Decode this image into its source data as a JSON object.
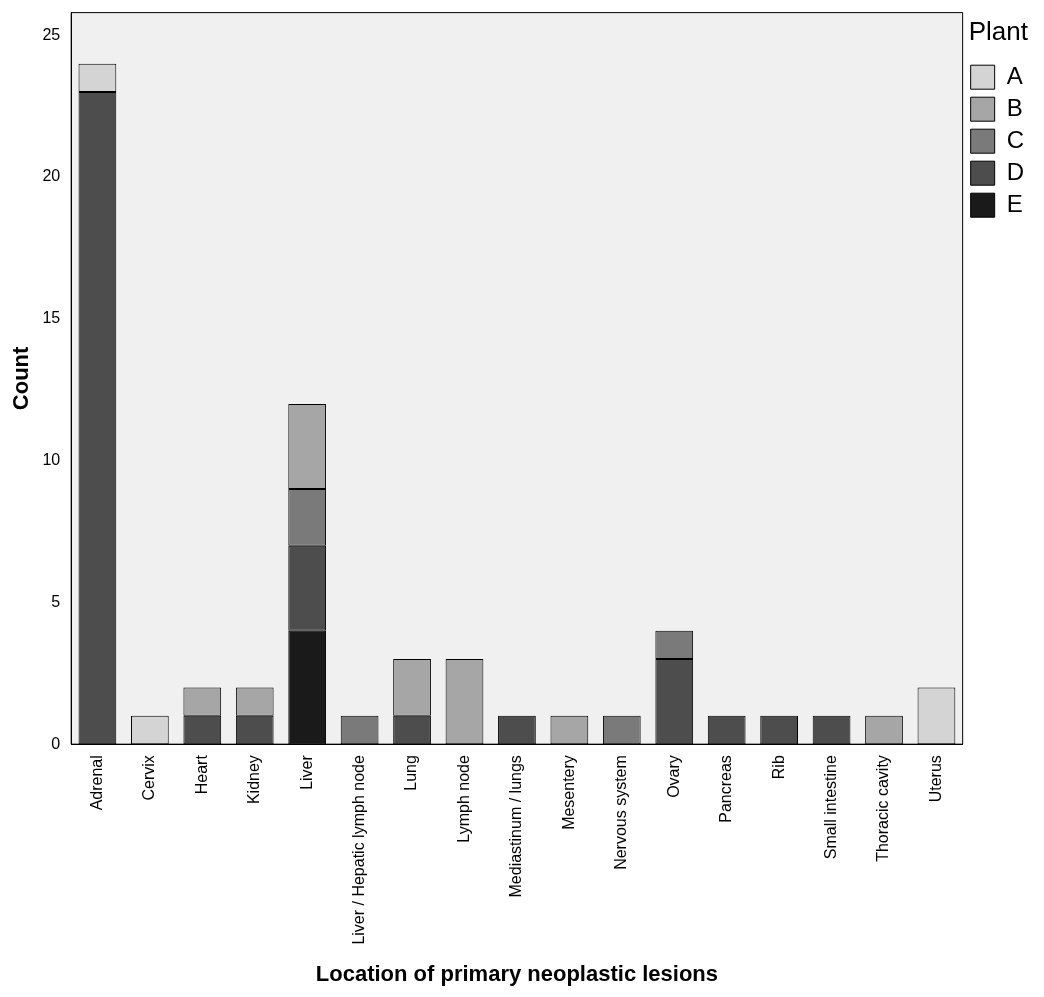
{
  "chart_data": {
    "type": "bar",
    "stacked": true,
    "xlabel": "Location of primary neoplastic lesions",
    "ylabel": "Count",
    "legend_title": "Plant",
    "legend": "top right",
    "grid": false,
    "categories": [
      "Adrenal",
      "Cervix",
      "Heart",
      "Kidney",
      "Liver",
      "Liver / Hepatic lymph node",
      "Lung",
      "Lymph node",
      "Mediastinum / lungs",
      "Mesentery",
      "Nervous system",
      "Ovary",
      "Pancreas",
      "Rib",
      "Small intestine",
      "Thoracic cavity",
      "Uterus"
    ],
    "ylim": [
      0,
      25.8
    ],
    "yticks": [
      0,
      5,
      10,
      15,
      20,
      25
    ],
    "series": [
      {
        "name": "E",
        "color": "#1a1a1a",
        "values": [
          0,
          0,
          0,
          0,
          4,
          0,
          0,
          0,
          0,
          0,
          0,
          0,
          0,
          0,
          0,
          0,
          0
        ]
      },
      {
        "name": "D",
        "color": "#4d4d4d",
        "values": [
          23,
          0,
          1,
          1,
          3,
          0,
          1,
          0,
          1,
          0,
          0,
          3,
          1,
          1,
          1,
          0,
          0
        ]
      },
      {
        "name": "C",
        "color": "#7a7a7a",
        "values": [
          0,
          0,
          0,
          0,
          2,
          1,
          0,
          0,
          0,
          0,
          1,
          1,
          0,
          0,
          0,
          0,
          0
        ]
      },
      {
        "name": "B",
        "color": "#a6a6a6",
        "values": [
          0,
          0,
          1,
          1,
          3,
          0,
          2,
          3,
          0,
          1,
          0,
          0,
          0,
          0,
          0,
          1,
          0
        ]
      },
      {
        "name": "A",
        "color": "#d4d4d4",
        "values": [
          1,
          1,
          0,
          0,
          0,
          0,
          0,
          0,
          0,
          0,
          0,
          0,
          0,
          0,
          0,
          0,
          2
        ]
      }
    ]
  }
}
